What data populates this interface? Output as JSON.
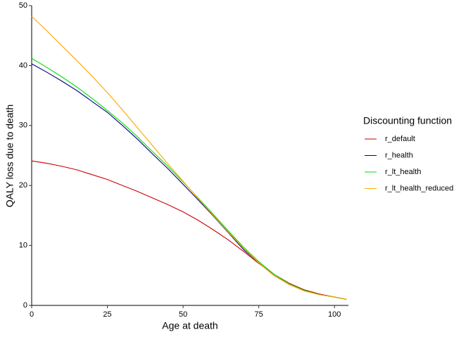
{
  "chart_data": {
    "type": "line",
    "x_label": "Age at death",
    "y_label": "QALY loss due to death",
    "x": [
      0,
      5,
      10,
      15,
      20,
      25,
      30,
      35,
      40,
      45,
      50,
      55,
      60,
      65,
      70,
      75,
      80,
      85,
      90,
      95,
      100,
      104
    ],
    "series": [
      {
        "name": "r_default",
        "color": "#cd0000",
        "values": [
          24.1,
          23.7,
          23.2,
          22.6,
          21.8,
          21.0,
          20.0,
          19.0,
          17.9,
          16.8,
          15.6,
          14.2,
          12.6,
          10.9,
          9.0,
          7.0,
          5.2,
          3.7,
          2.6,
          1.9,
          1.4,
          1.0
        ]
      },
      {
        "name": "r_health",
        "color": "#000080",
        "values": [
          40.3,
          38.9,
          37.4,
          35.8,
          34.0,
          32.2,
          30.0,
          27.7,
          25.2,
          22.8,
          20.2,
          17.6,
          14.9,
          12.1,
          9.3,
          7.1,
          5.0,
          3.5,
          2.5,
          1.8,
          1.4,
          1.0
        ]
      },
      {
        "name": "r_lt_health",
        "color": "#00dd00",
        "values": [
          41.2,
          39.7,
          38.1,
          36.4,
          34.5,
          32.5,
          30.4,
          28.1,
          25.6,
          23.2,
          20.6,
          17.9,
          15.2,
          12.4,
          9.7,
          7.3,
          5.2,
          3.6,
          2.5,
          1.8,
          1.4,
          1.0
        ]
      },
      {
        "name": "r_lt_health_reduced",
        "color": "#ffa500",
        "values": [
          48.2,
          45.8,
          43.3,
          40.8,
          38.2,
          35.5,
          32.6,
          29.6,
          26.6,
          23.6,
          20.7,
          17.8,
          15.0,
          12.2,
          9.5,
          7.1,
          5.0,
          3.5,
          2.4,
          1.8,
          1.4,
          1.0
        ]
      }
    ],
    "xlim": [
      0,
      104.6
    ],
    "xticks": [
      0,
      25,
      50,
      75,
      100
    ],
    "ylim": [
      0,
      50
    ],
    "yticks": [
      0,
      10,
      20,
      30,
      40,
      50
    ],
    "grid": false,
    "legend_title": "Discounting function",
    "legend_position": "right"
  }
}
